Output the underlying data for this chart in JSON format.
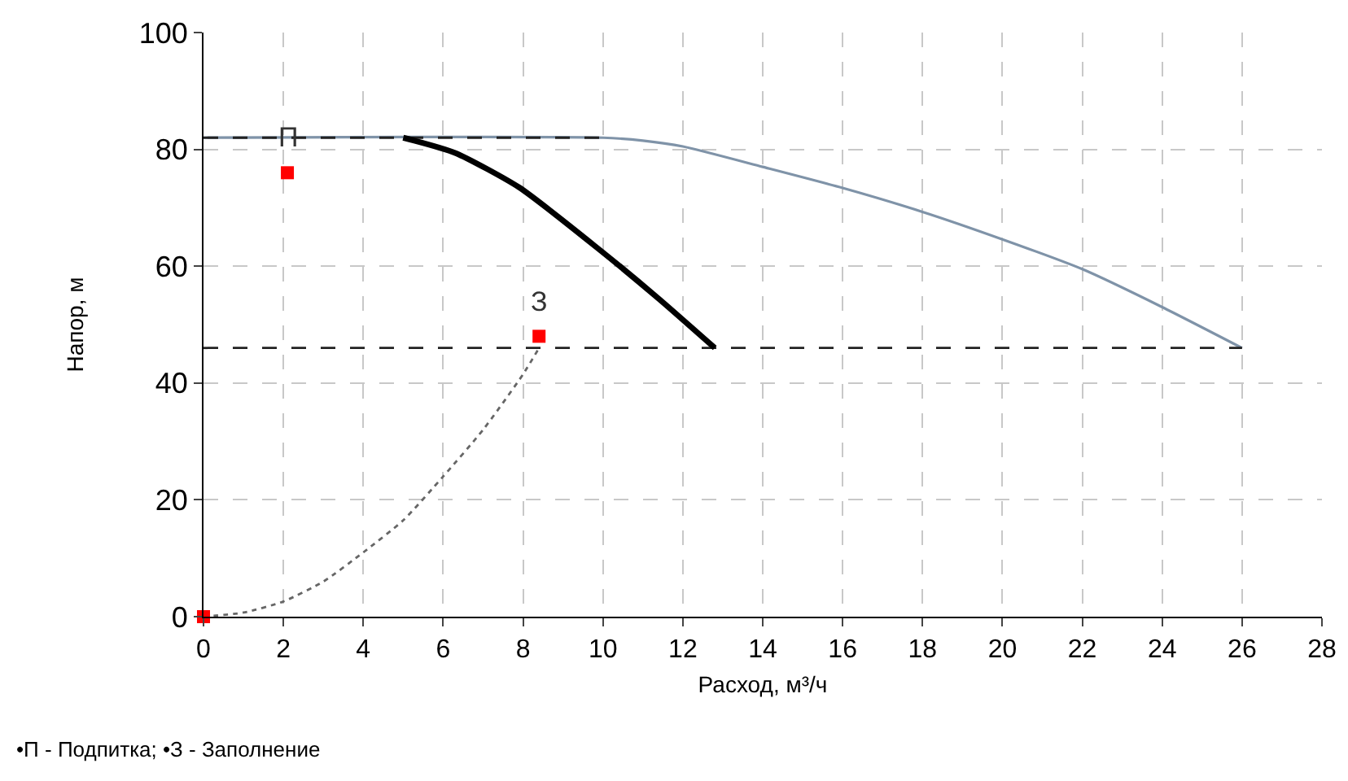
{
  "chart_data": {
    "type": "line",
    "xlabel": "Расход, м³/ч",
    "ylabel": "Напор, м",
    "xlim": [
      0,
      28
    ],
    "xticks": [
      0,
      2,
      4,
      6,
      8,
      10,
      12,
      14,
      16,
      18,
      20,
      22,
      24,
      26,
      28
    ],
    "ylim": [
      0,
      100
    ],
    "yticks": [
      0,
      20,
      40,
      60,
      80,
      100
    ],
    "grid": true,
    "series": [
      {
        "type": "line",
        "color": "#7f93a8",
        "line_style": "solid",
        "marker": "none",
        "x": [
          0,
          10,
          11,
          12,
          14,
          16,
          18,
          20,
          22,
          24,
          26
        ],
        "values": [
          82,
          82,
          81.5,
          80.5,
          77,
          73.4,
          69.3,
          64.6,
          59.5,
          53,
          46
        ]
      },
      {
        "type": "line",
        "color": "#222222",
        "line_style": "dashed",
        "marker": "none",
        "x": [
          0,
          10
        ],
        "values": [
          82,
          82
        ]
      },
      {
        "type": "line",
        "color": "#222222",
        "line_style": "dashed",
        "marker": "none",
        "x": [
          0,
          26
        ],
        "values": [
          46,
          46
        ]
      },
      {
        "type": "line",
        "color": "#000000",
        "line_style": "solid",
        "marker": "none",
        "x": [
          5,
          6.3,
          7.9,
          9.9,
          11.4,
          12.8
        ],
        "values": [
          82,
          79.4,
          73.5,
          62.9,
          54.4,
          46
        ]
      },
      {
        "type": "line",
        "color": "#666666",
        "line_style": "dotted",
        "marker": "none",
        "x": [
          0,
          1,
          2,
          3,
          4,
          5,
          6,
          7,
          8,
          8.4
        ],
        "values": [
          0,
          0.7,
          2.6,
          6,
          11,
          16.5,
          24,
          32,
          41.5,
          46
        ]
      },
      {
        "type": "scatter",
        "color": "#ff0000",
        "marker": "square",
        "x": [
          0,
          2.1,
          8.4
        ],
        "values": [
          0,
          76,
          48
        ]
      }
    ],
    "annotations": [
      {
        "text": "П",
        "x": 2.1,
        "y": 76
      },
      {
        "text": "З",
        "x": 8.4,
        "y": 48
      },
      "•П - Подпитка; •З - Заполнение"
    ]
  }
}
